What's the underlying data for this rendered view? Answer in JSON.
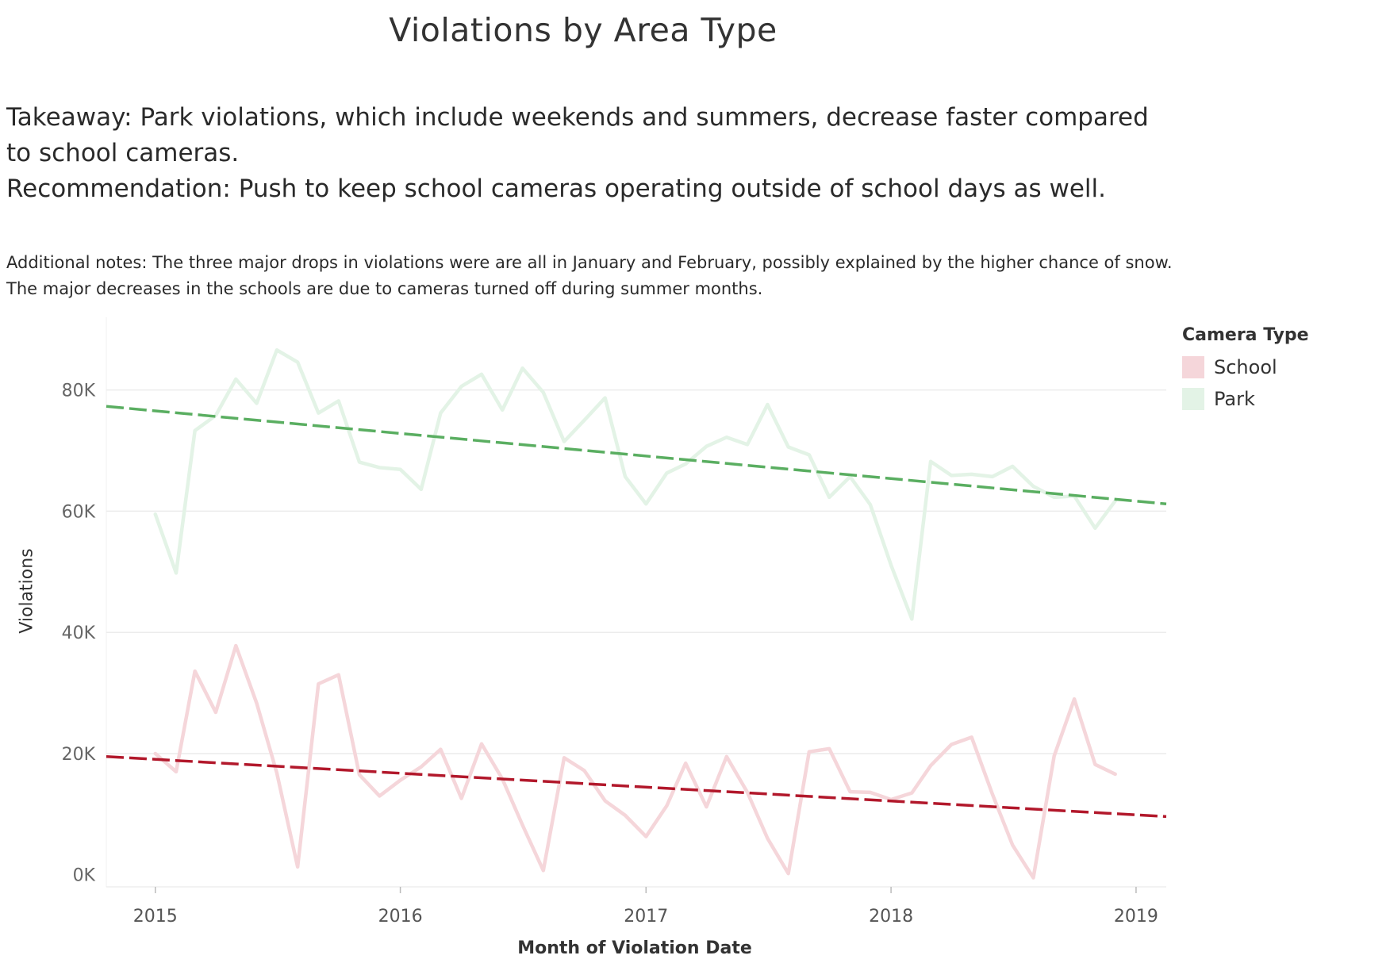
{
  "title": "Violations by Area Type",
  "takeaway": "Takeaway: Park violations, which include weekends and summers, decrease faster compared to school cameras.",
  "recommendation": "Recommendation: Push to keep school cameras operating outside of school days as well.",
  "notes_line1": "Additional notes: The three major drops in violations were are all in January and February, possibly explained by the higher chance of snow.",
  "notes_line2": "The major decreases in the schools are due to cameras turned off during summer months.",
  "colors": {
    "park_line": "#e3f3e6",
    "school_line": "#f5d6da",
    "park_trend": "#5aae61",
    "school_trend": "#b2182b",
    "gridline": "#ececec"
  },
  "chart_data": {
    "type": "line",
    "title": "Violations by Area Type",
    "xlabel": "Month of Violation Date",
    "ylabel": "Violations",
    "y_ticks": [
      0,
      20000,
      40000,
      60000,
      80000
    ],
    "y_tick_labels": [
      "0K",
      "20K",
      "40K",
      "60K",
      "80K"
    ],
    "x_ticks": [
      "2015",
      "2016",
      "2017",
      "2018",
      "2019"
    ],
    "ylim": [
      -2000,
      92000
    ],
    "xlim": [
      "2014-10-20",
      "2019-02-15"
    ],
    "grid": true,
    "legend": {
      "title": "Camera Type",
      "placement": "right",
      "entries": [
        "School",
        "Park"
      ]
    },
    "x": [
      "2015-01",
      "2015-02",
      "2015-03",
      "2015-04",
      "2015-05",
      "2015-06",
      "2015-07",
      "2015-08",
      "2015-09",
      "2015-10",
      "2015-11",
      "2015-12",
      "2016-01",
      "2016-02",
      "2016-03",
      "2016-04",
      "2016-05",
      "2016-06",
      "2016-07",
      "2016-08",
      "2016-09",
      "2016-10",
      "2016-11",
      "2016-12",
      "2017-01",
      "2017-02",
      "2017-03",
      "2017-04",
      "2017-05",
      "2017-06",
      "2017-07",
      "2017-08",
      "2017-09",
      "2017-10",
      "2017-11",
      "2017-12",
      "2018-01",
      "2018-02",
      "2018-03",
      "2018-04",
      "2018-05",
      "2018-06",
      "2018-07",
      "2018-08",
      "2018-09",
      "2018-10",
      "2018-11",
      "2018-12"
    ],
    "series": [
      {
        "name": "Park",
        "values": [
          59500,
          49800,
          73300,
          75800,
          81800,
          77800,
          86600,
          84600,
          76200,
          78200,
          68100,
          67200,
          66900,
          63600,
          76200,
          80600,
          82600,
          76700,
          83600,
          79600,
          71500,
          75000,
          78700,
          65700,
          61200,
          66300,
          67800,
          70700,
          72200,
          71000,
          77600,
          70600,
          69300,
          62300,
          65700,
          61100,
          51100,
          42200,
          68200,
          65900,
          66100,
          65700,
          67400,
          64100,
          62300,
          62500,
          57200,
          61700
        ]
      },
      {
        "name": "School",
        "values": [
          20000,
          17000,
          33600,
          26800,
          37800,
          28300,
          16800,
          1300,
          31500,
          33000,
          16500,
          13000,
          15600,
          17800,
          20700,
          12600,
          21600,
          15800,
          8200,
          700,
          19300,
          17200,
          12200,
          9800,
          6300,
          11400,
          18400,
          11200,
          19500,
          13600,
          6000,
          200,
          20300,
          20800,
          13700,
          13600,
          12400,
          13500,
          18000,
          21500,
          22700,
          13300,
          4900,
          -500,
          19600,
          29000,
          18200,
          16600
        ]
      }
    ],
    "trendlines": [
      {
        "series": "Park",
        "start": [
          "2014-10-20",
          77300
        ],
        "end": [
          "2019-02-15",
          61200
        ],
        "style": "dashed"
      },
      {
        "series": "School",
        "start": [
          "2014-10-20",
          19500
        ],
        "end": [
          "2019-02-15",
          9600
        ],
        "style": "dashed"
      }
    ]
  }
}
